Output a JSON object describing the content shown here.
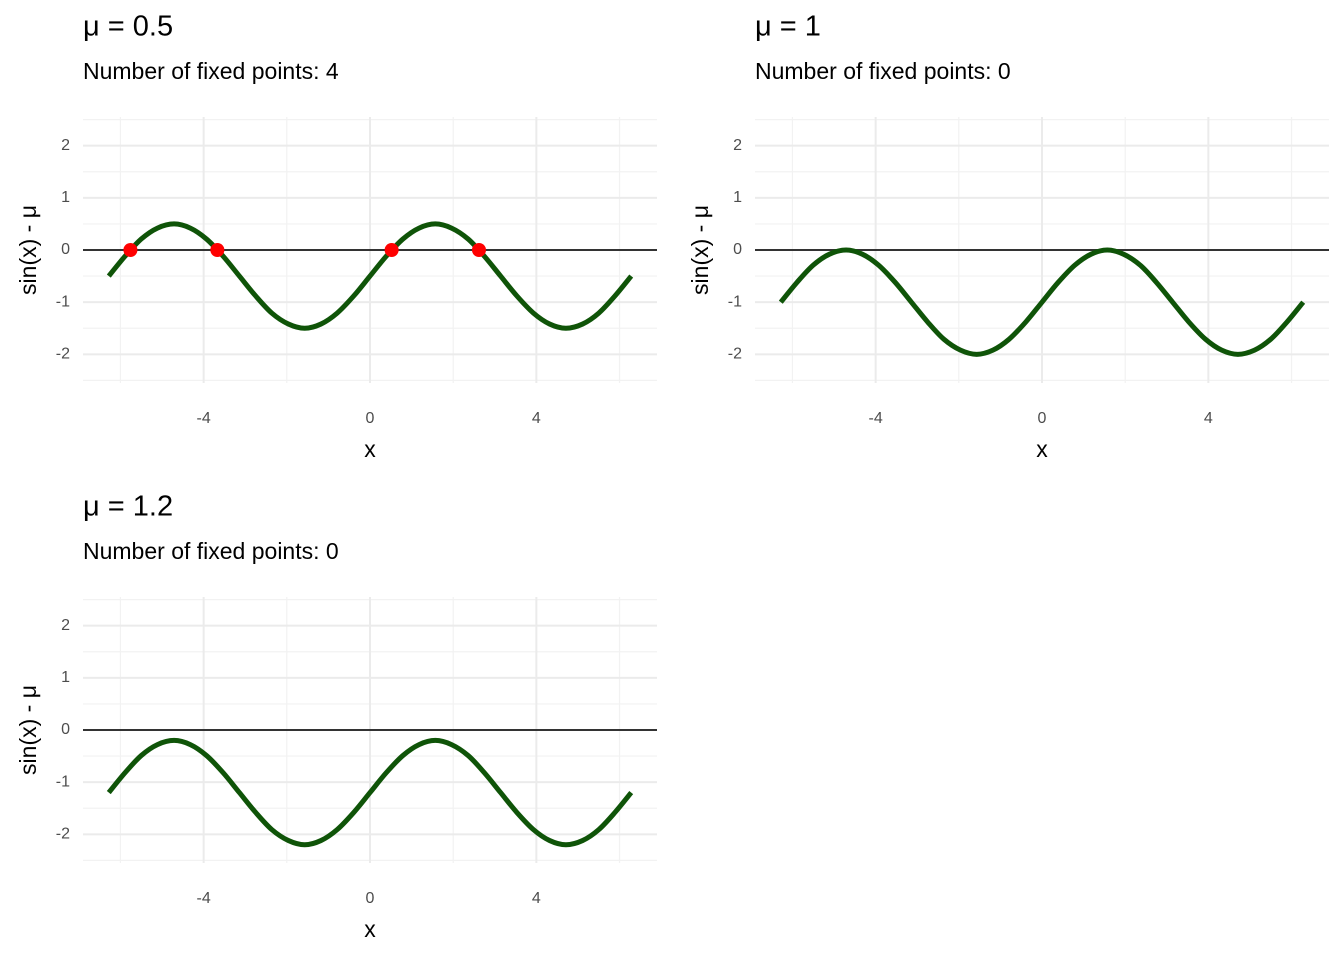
{
  "chart_data": [
    {
      "type": "line",
      "title": "μ = 0.5",
      "subtitle": "Number of fixed points: 4",
      "xlabel": "x",
      "ylabel": "sin(x) - μ",
      "x": [
        -6.28,
        -5.89,
        -5.5,
        -5.11,
        -4.71,
        -4.32,
        -3.93,
        -3.53,
        -3.14,
        -2.75,
        -2.36,
        -1.96,
        -1.57,
        -1.18,
        -0.79,
        -0.39,
        0,
        0.39,
        0.79,
        1.18,
        1.57,
        1.96,
        2.36,
        2.75,
        3.14,
        3.53,
        3.93,
        4.32,
        4.71,
        5.11,
        5.5,
        5.89,
        6.28
      ],
      "series": [
        {
          "color": "#0f5408",
          "values": [
            -0.5,
            -0.12,
            0.21,
            0.42,
            0.5,
            0.42,
            0.21,
            -0.12,
            -0.5,
            -0.88,
            -1.21,
            -1.42,
            -1.5,
            -1.42,
            -1.21,
            -0.88,
            -0.5,
            -0.12,
            0.21,
            0.42,
            0.5,
            0.42,
            0.21,
            -0.12,
            -0.5,
            -0.88,
            -1.21,
            -1.42,
            -1.5,
            -1.42,
            -1.21,
            -0.88,
            -0.5
          ]
        }
      ],
      "points": {
        "color": "#ff0000",
        "x": [
          -5.76,
          -3.67,
          0.52,
          2.62
        ],
        "y": [
          0,
          0,
          0,
          0
        ]
      },
      "hline": 0,
      "xlim": [
        -6.9,
        6.9
      ],
      "xticks": [
        -4,
        0,
        4
      ],
      "ylim": [
        -2.55,
        2.55
      ],
      "yticks": [
        -2,
        -1,
        0,
        1,
        2
      ],
      "grid": true
    },
    {
      "type": "line",
      "title": "μ = 1",
      "subtitle": "Number of fixed points: 0",
      "xlabel": "x",
      "ylabel": "sin(x) - μ",
      "x": [
        -6.28,
        -5.89,
        -5.5,
        -5.11,
        -4.71,
        -4.32,
        -3.93,
        -3.53,
        -3.14,
        -2.75,
        -2.36,
        -1.96,
        -1.57,
        -1.18,
        -0.79,
        -0.39,
        0,
        0.39,
        0.79,
        1.18,
        1.57,
        1.96,
        2.36,
        2.75,
        3.14,
        3.53,
        3.93,
        4.32,
        4.71,
        5.11,
        5.5,
        5.89,
        6.28
      ],
      "series": [
        {
          "color": "#0f5408",
          "values": [
            -1,
            -0.62,
            -0.29,
            -0.08,
            0,
            -0.08,
            -0.29,
            -0.62,
            -1,
            -1.38,
            -1.71,
            -1.92,
            -2,
            -1.92,
            -1.71,
            -1.38,
            -1,
            -0.62,
            -0.29,
            -0.08,
            0,
            -0.08,
            -0.29,
            -0.62,
            -1,
            -1.38,
            -1.71,
            -1.92,
            -2,
            -1.92,
            -1.71,
            -1.38,
            -1
          ]
        }
      ],
      "hline": 0,
      "xlim": [
        -6.9,
        6.9
      ],
      "xticks": [
        -4,
        0,
        4
      ],
      "ylim": [
        -2.55,
        2.55
      ],
      "yticks": [
        -2,
        -1,
        0,
        1,
        2
      ],
      "grid": true
    },
    {
      "type": "line",
      "title": "μ = 1.2",
      "subtitle": "Number of fixed points: 0",
      "xlabel": "x",
      "ylabel": "sin(x) - μ",
      "x": [
        -6.28,
        -5.89,
        -5.5,
        -5.11,
        -4.71,
        -4.32,
        -3.93,
        -3.53,
        -3.14,
        -2.75,
        -2.36,
        -1.96,
        -1.57,
        -1.18,
        -0.79,
        -0.39,
        0,
        0.39,
        0.79,
        1.18,
        1.57,
        1.96,
        2.36,
        2.75,
        3.14,
        3.53,
        3.93,
        4.32,
        4.71,
        5.11,
        5.5,
        5.89,
        6.28
      ],
      "series": [
        {
          "color": "#0f5408",
          "values": [
            -1.2,
            -0.82,
            -0.49,
            -0.28,
            -0.2,
            -0.28,
            -0.49,
            -0.82,
            -1.2,
            -1.58,
            -1.91,
            -2.12,
            -2.2,
            -2.12,
            -1.91,
            -1.58,
            -1.2,
            -0.82,
            -0.49,
            -0.28,
            -0.2,
            -0.28,
            -0.49,
            -0.82,
            -1.2,
            -1.58,
            -1.91,
            -2.12,
            -2.2,
            -2.12,
            -1.91,
            -1.58,
            -1.2
          ]
        }
      ],
      "hline": 0,
      "xlim": [
        -6.9,
        6.9
      ],
      "xticks": [
        -4,
        0,
        4
      ],
      "ylim": [
        -2.55,
        2.55
      ],
      "yticks": [
        -2,
        -1,
        0,
        1,
        2
      ],
      "grid": true
    }
  ]
}
